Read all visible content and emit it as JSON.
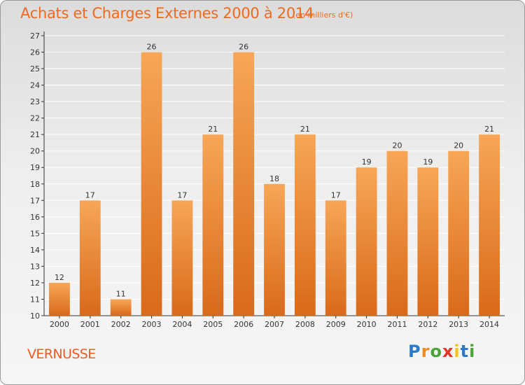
{
  "header": {
    "title": "Achats et Charges Externes 2000 à 2014",
    "subtitle": "(en milliers d'€)"
  },
  "footer": {
    "commune": "VERNUSSE",
    "logo_text": "Proxiti"
  },
  "colors": {
    "title": "#ee6a1f",
    "bar_top": "#f7a657",
    "bar_bottom": "#d96a1a",
    "axis": "#333333",
    "grid": "#ffffff"
  },
  "chart_data": {
    "type": "bar",
    "title": "Achats et Charges Externes 2000 à 2014",
    "subtitle": "(en milliers d'€)",
    "xlabel": "",
    "ylabel": "",
    "categories": [
      "2000",
      "2001",
      "2002",
      "2003",
      "2004",
      "2005",
      "2006",
      "2007",
      "2008",
      "2009",
      "2010",
      "2011",
      "2012",
      "2013",
      "2014"
    ],
    "values": [
      12,
      17,
      11,
      26,
      17,
      21,
      26,
      18,
      21,
      17,
      19,
      20,
      19,
      20,
      21
    ],
    "ylim": [
      10,
      27
    ],
    "yticks": [
      10,
      11,
      12,
      13,
      14,
      15,
      16,
      17,
      18,
      19,
      20,
      21,
      22,
      23,
      24,
      25,
      26,
      27
    ],
    "grid": true,
    "legend": "none"
  }
}
